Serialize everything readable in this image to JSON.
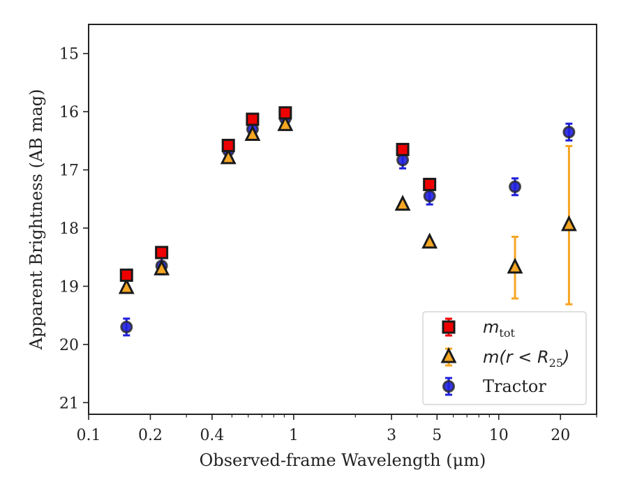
{
  "chart_data": {
    "type": "scatter",
    "xlabel": "Observed-frame Wavelength (μm)",
    "ylabel": "Apparent Brightness (AB mag)",
    "xscale": "log",
    "xlim": [
      0.1,
      30
    ],
    "ylim": [
      21.2,
      14.5
    ],
    "y_inverted": true,
    "x_ticks": [
      {
        "value": 0.1,
        "label": "0.1"
      },
      {
        "value": 0.2,
        "label": "0.2"
      },
      {
        "value": 0.4,
        "label": "0.4"
      },
      {
        "value": 1,
        "label": "1"
      },
      {
        "value": 3,
        "label": "3"
      },
      {
        "value": 5,
        "label": "5"
      },
      {
        "value": 10,
        "label": "10"
      },
      {
        "value": 20,
        "label": "20"
      }
    ],
    "y_ticks": [
      15,
      16,
      17,
      18,
      19,
      20,
      21
    ],
    "grid": false,
    "legend_position": "bottom-right",
    "series": [
      {
        "name": "m_tot",
        "legend_main": "m",
        "legend_sub": "tot",
        "marker": "square",
        "color": "#ee0000",
        "points": [
          {
            "x": 0.153,
            "y": 18.81
          },
          {
            "x": 0.227,
            "y": 18.42
          },
          {
            "x": 0.48,
            "y": 16.58
          },
          {
            "x": 0.63,
            "y": 16.13
          },
          {
            "x": 0.91,
            "y": 16.02
          },
          {
            "x": 3.4,
            "y": 16.65
          },
          {
            "x": 4.6,
            "y": 17.25
          }
        ]
      },
      {
        "name": "m(r < R_25)",
        "legend_main": "m(r < R",
        "legend_sub": "25",
        "legend_tail": ")",
        "marker": "triangle",
        "color": "#f5a623",
        "points": [
          {
            "x": 0.153,
            "y": 19.03
          },
          {
            "x": 0.227,
            "y": 18.71
          },
          {
            "x": 0.48,
            "y": 16.8
          },
          {
            "x": 0.63,
            "y": 16.4
          },
          {
            "x": 0.91,
            "y": 16.23
          },
          {
            "x": 3.4,
            "y": 17.6
          },
          {
            "x": 4.6,
            "y": 18.25
          },
          {
            "x": 12,
            "y": 18.68,
            "yerr": 0.53
          },
          {
            "x": 22,
            "y": 17.95,
            "yerr": 1.36
          }
        ]
      },
      {
        "name": "Tractor",
        "legend_main": "Tractor",
        "marker": "circle",
        "color": "#1f1fdd",
        "points": [
          {
            "x": 0.153,
            "y": 19.7
          },
          {
            "x": 0.227,
            "y": 18.65
          },
          {
            "x": 0.48,
            "y": 16.67
          },
          {
            "x": 0.63,
            "y": 16.3
          },
          {
            "x": 0.91,
            "y": 16.12
          },
          {
            "x": 3.4,
            "y": 16.83
          },
          {
            "x": 4.6,
            "y": 17.45
          },
          {
            "x": 12,
            "y": 17.29
          },
          {
            "x": 22,
            "y": 16.35
          }
        ]
      }
    ]
  }
}
